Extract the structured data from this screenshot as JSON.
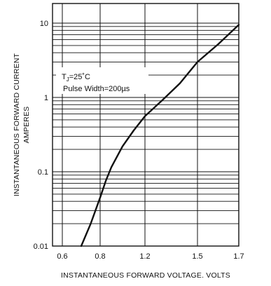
{
  "chart_data": {
    "type": "line",
    "title": "",
    "xlabel": "INSTANTANEOUS FORWARD VOLTAGE. VOLTS",
    "ylabel_line1": "INSTANTANEOUS FORWARD CURRENT",
    "ylabel_line2": "AMPERES",
    "x_scale": "linear",
    "y_scale": "log",
    "xlim": [
      0.6,
      1.7
    ],
    "ylim": [
      0.01,
      15
    ],
    "x_ticks": [
      "0.6",
      "0.8",
      "1.2",
      "1.5",
      "1.7"
    ],
    "y_ticks": [
      "0.01",
      "0.1",
      "1",
      "10"
    ],
    "grid": true,
    "annotation": {
      "tj_symbol": "T",
      "tj_subscript": "J",
      "tj_value": "=25˚C",
      "pulse": "Pulse Width=200µs"
    },
    "series": [
      {
        "x": [
          0.7,
          0.75,
          0.8,
          0.85,
          0.9,
          1.0,
          1.1,
          1.2,
          1.3,
          1.4,
          1.5,
          1.6,
          1.7
        ],
        "y": [
          0.01,
          0.02,
          0.045,
          0.075,
          0.115,
          0.22,
          0.36,
          0.56,
          0.92,
          1.55,
          3.0,
          5.2,
          9.5
        ]
      }
    ]
  }
}
